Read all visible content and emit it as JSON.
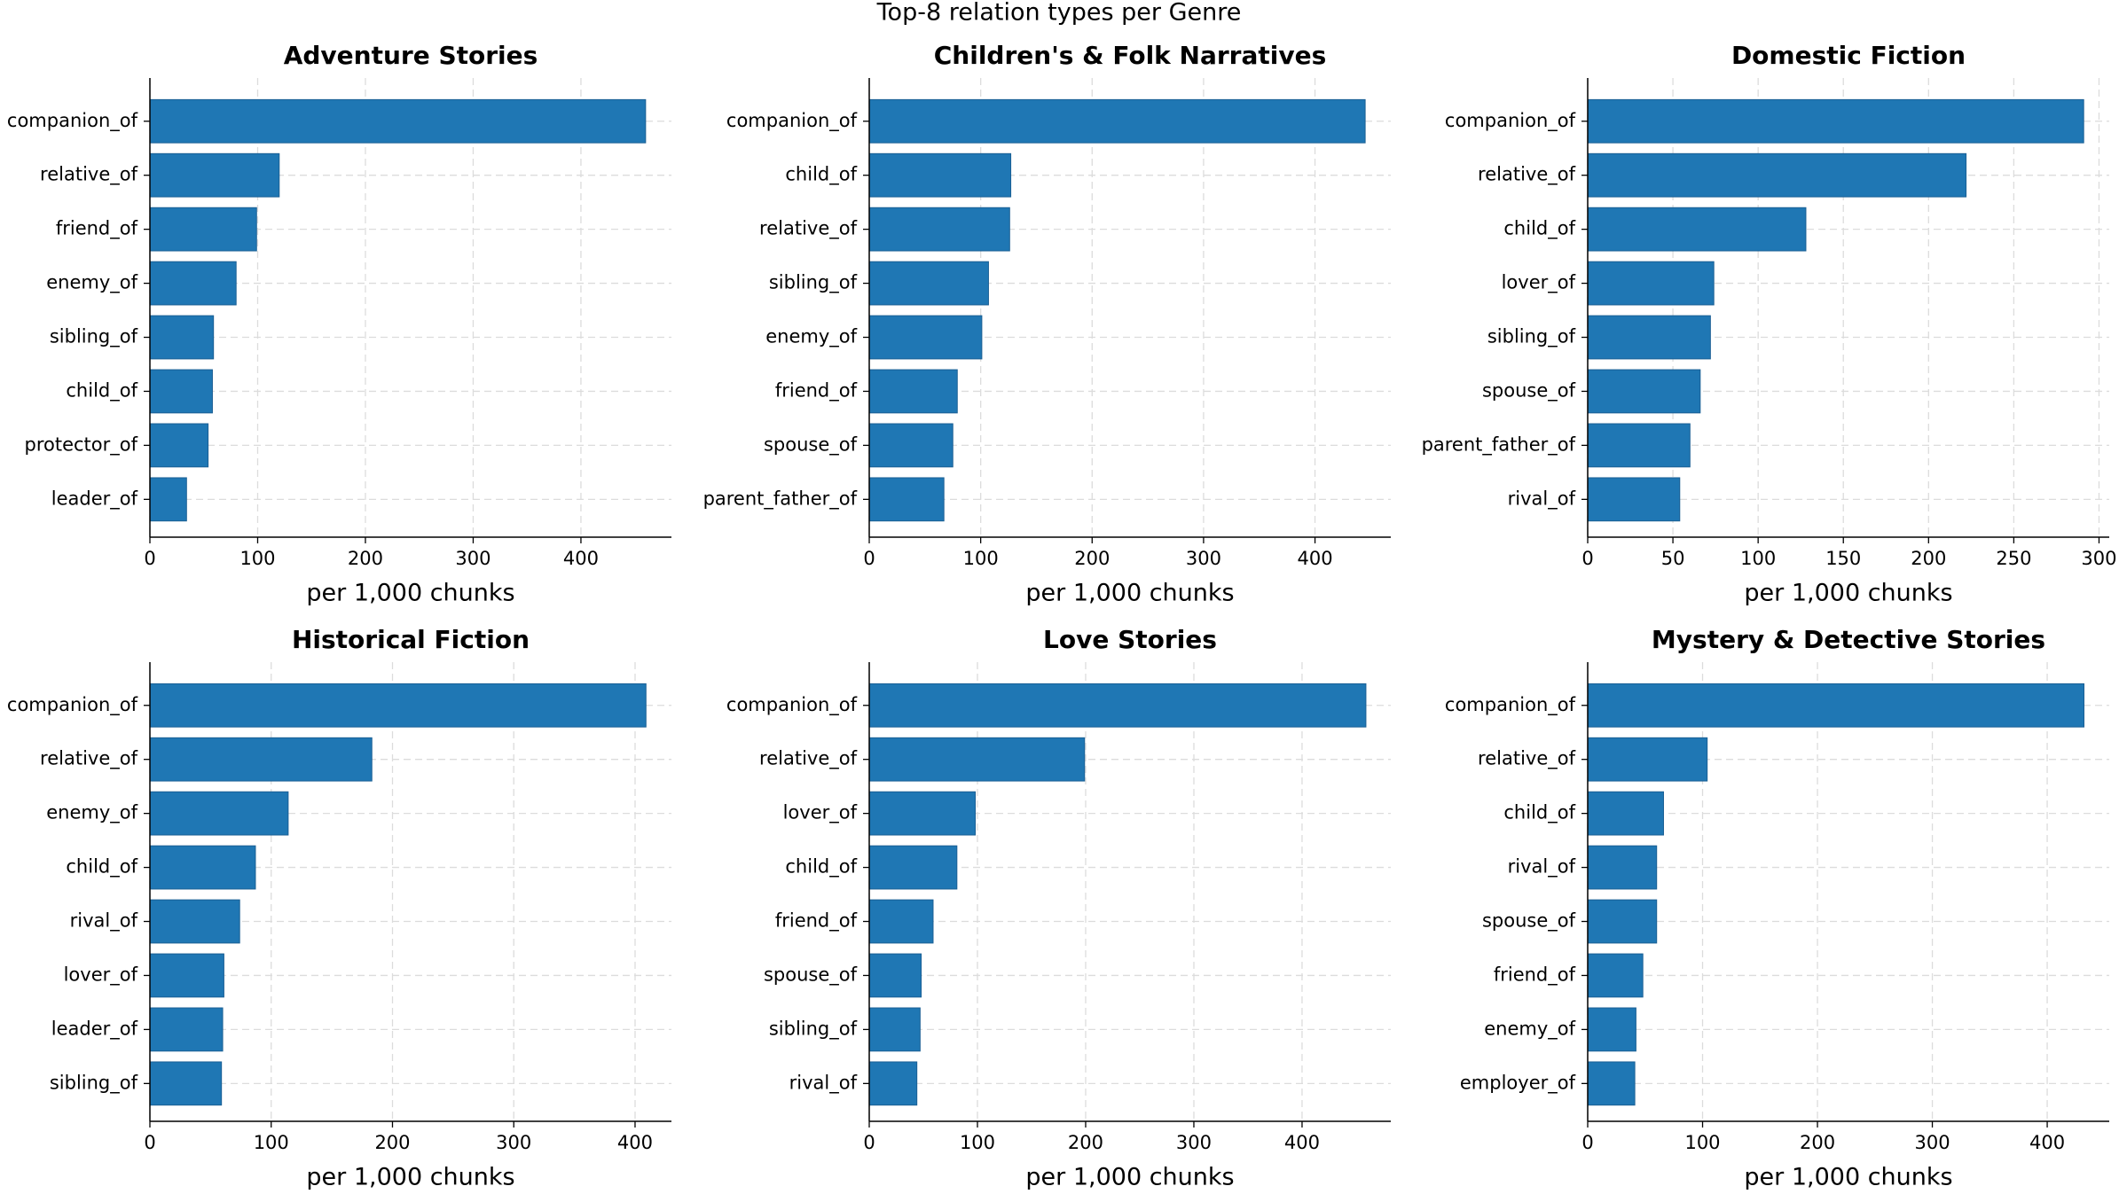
{
  "title": "Top-8 relation types per Genre",
  "chart_data": [
    {
      "type": "bar",
      "orientation": "horizontal",
      "title": "Adventure Stories",
      "xlabel": "per 1,000 chunks",
      "categories": [
        "companion_of",
        "relative_of",
        "friend_of",
        "enemy_of",
        "sibling_of",
        "child_of",
        "protector_of",
        "leader_of"
      ],
      "values": [
        460,
        120,
        99,
        80,
        59,
        58,
        54,
        34
      ],
      "color": "#1f77b4",
      "xlim": [
        0,
        484
      ],
      "xticks": [
        0,
        100,
        200,
        300,
        400
      ],
      "grid": true
    },
    {
      "type": "bar",
      "orientation": "horizontal",
      "title": "Children's & Folk Narratives",
      "xlabel": "per 1,000 chunks",
      "categories": [
        "companion_of",
        "child_of",
        "relative_of",
        "sibling_of",
        "enemy_of",
        "friend_of",
        "spouse_of",
        "parent_father_of"
      ],
      "values": [
        445,
        127,
        126,
        107,
        101,
        79,
        75,
        67
      ],
      "color": "#1f77b4",
      "xlim": [
        0,
        468
      ],
      "xticks": [
        0,
        100,
        200,
        300,
        400
      ],
      "grid": true
    },
    {
      "type": "bar",
      "orientation": "horizontal",
      "title": "Domestic Fiction",
      "xlabel": "per 1,000 chunks",
      "categories": [
        "companion_of",
        "relative_of",
        "child_of",
        "lover_of",
        "sibling_of",
        "spouse_of",
        "parent_father_of",
        "rival_of"
      ],
      "values": [
        291,
        222,
        128,
        74,
        72,
        66,
        60,
        54
      ],
      "color": "#1f77b4",
      "xlim": [
        0,
        306
      ],
      "xticks": [
        0,
        50,
        100,
        150,
        200,
        250,
        300
      ],
      "grid": true
    },
    {
      "type": "bar",
      "orientation": "horizontal",
      "title": "Historical Fiction",
      "xlabel": "per 1,000 chunks",
      "categories": [
        "companion_of",
        "relative_of",
        "enemy_of",
        "child_of",
        "rival_of",
        "lover_of",
        "leader_of",
        "sibling_of"
      ],
      "values": [
        409,
        183,
        114,
        87,
        74,
        61,
        60,
        59
      ],
      "color": "#1f77b4",
      "xlim": [
        0,
        430
      ],
      "xticks": [
        0,
        100,
        200,
        300,
        400
      ],
      "grid": true
    },
    {
      "type": "bar",
      "orientation": "horizontal",
      "title": "Love Stories",
      "xlabel": "per 1,000 chunks",
      "categories": [
        "companion_of",
        "relative_of",
        "lover_of",
        "child_of",
        "friend_of",
        "spouse_of",
        "sibling_of",
        "rival_of"
      ],
      "values": [
        459,
        199,
        98,
        81,
        59,
        48,
        47,
        44
      ],
      "color": "#1f77b4",
      "xlim": [
        0,
        482
      ],
      "xticks": [
        0,
        100,
        200,
        300,
        400
      ],
      "grid": true
    },
    {
      "type": "bar",
      "orientation": "horizontal",
      "title": "Mystery & Detective Stories",
      "xlabel": "per 1,000 chunks",
      "categories": [
        "companion_of",
        "relative_of",
        "child_of",
        "rival_of",
        "spouse_of",
        "friend_of",
        "enemy_of",
        "employer_of"
      ],
      "values": [
        432,
        104,
        66,
        60,
        60,
        48,
        42,
        41
      ],
      "color": "#1f77b4",
      "xlim": [
        0,
        454
      ],
      "xticks": [
        0,
        100,
        200,
        300,
        400
      ],
      "grid": true
    }
  ]
}
